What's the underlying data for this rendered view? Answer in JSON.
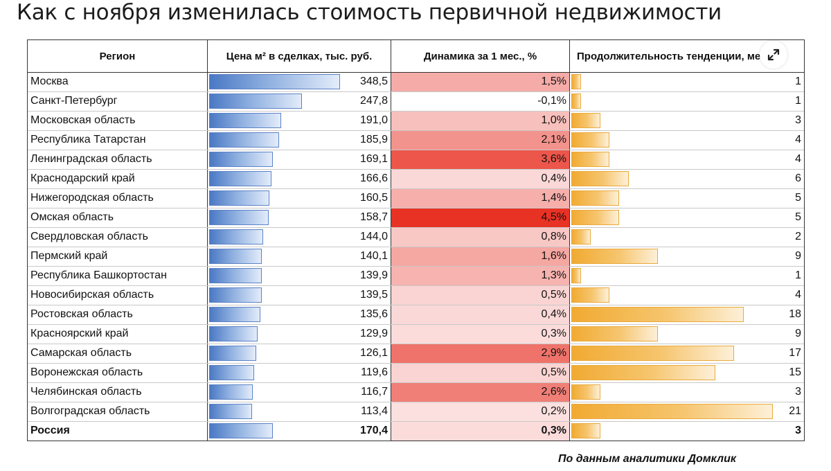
{
  "title": "Как с ноября изменилась стоимость первичной недвижимости",
  "footer": "По данным аналитики Домклик",
  "expand_icon": "expand-arrows-icon",
  "colors": {
    "price_bar": "#4a78c4",
    "change_positive": "#e83224",
    "change_negative": "#ffffff",
    "trend_bar": "#f1aa32"
  },
  "chart_data": {
    "type": "table",
    "columns": [
      "Регион",
      "Цена м² в сделках, тыс. руб.",
      "Динамика за 1 мес., %",
      "Продолжительность тенденции, мес."
    ],
    "headers_visible": [
      "Регион",
      "Цена м² в сделках, тыс. руб.",
      "Динамика за 1 мес., %",
      "Продолжительность тенденции, мес."
    ],
    "rows": [
      {
        "region": "Москва",
        "price": 348.5,
        "price_text": "348,5",
        "change": 1.5,
        "change_text": "1,5%",
        "trend": 1,
        "trend_text": "1"
      },
      {
        "region": "Санкт-Петербург",
        "price": 247.8,
        "price_text": "247,8",
        "change": -0.1,
        "change_text": "-0,1%",
        "trend": 1,
        "trend_text": "1"
      },
      {
        "region": "Московская область",
        "price": 191.0,
        "price_text": "191,0",
        "change": 1.0,
        "change_text": "1,0%",
        "trend": 3,
        "trend_text": "3"
      },
      {
        "region": "Республика Татарстан",
        "price": 185.9,
        "price_text": "185,9",
        "change": 2.1,
        "change_text": "2,1%",
        "trend": 4,
        "trend_text": "4"
      },
      {
        "region": "Ленинградская область",
        "price": 169.1,
        "price_text": "169,1",
        "change": 3.6,
        "change_text": "3,6%",
        "trend": 4,
        "trend_text": "4"
      },
      {
        "region": "Краснодарский край",
        "price": 166.6,
        "price_text": "166,6",
        "change": 0.4,
        "change_text": "0,4%",
        "trend": 6,
        "trend_text": "6"
      },
      {
        "region": "Нижегородская область",
        "price": 160.5,
        "price_text": "160,5",
        "change": 1.4,
        "change_text": "1,4%",
        "trend": 5,
        "trend_text": "5"
      },
      {
        "region": "Омская область",
        "price": 158.7,
        "price_text": "158,7",
        "change": 4.5,
        "change_text": "4,5%",
        "trend": 5,
        "trend_text": "5"
      },
      {
        "region": "Свердловская область",
        "price": 144.0,
        "price_text": "144,0",
        "change": 0.8,
        "change_text": "0,8%",
        "trend": 2,
        "trend_text": "2"
      },
      {
        "region": "Пермский край",
        "price": 140.1,
        "price_text": "140,1",
        "change": 1.6,
        "change_text": "1,6%",
        "trend": 9,
        "trend_text": "9"
      },
      {
        "region": "Республика Башкортостан",
        "price": 139.9,
        "price_text": "139,9",
        "change": 1.3,
        "change_text": "1,3%",
        "trend": 1,
        "trend_text": "1"
      },
      {
        "region": "Новосибирская область",
        "price": 139.5,
        "price_text": "139,5",
        "change": 0.5,
        "change_text": "0,5%",
        "trend": 4,
        "trend_text": "4"
      },
      {
        "region": "Ростовская область",
        "price": 135.6,
        "price_text": "135,6",
        "change": 0.4,
        "change_text": "0,4%",
        "trend": 18,
        "trend_text": "18"
      },
      {
        "region": "Красноярский край",
        "price": 129.9,
        "price_text": "129,9",
        "change": 0.3,
        "change_text": "0,3%",
        "trend": 9,
        "trend_text": "9"
      },
      {
        "region": "Самарская область",
        "price": 126.1,
        "price_text": "126,1",
        "change": 2.9,
        "change_text": "2,9%",
        "trend": 17,
        "trend_text": "17"
      },
      {
        "region": "Воронежская область",
        "price": 119.6,
        "price_text": "119,6",
        "change": 0.5,
        "change_text": "0,5%",
        "trend": 15,
        "trend_text": "15"
      },
      {
        "region": "Челябинская область",
        "price": 116.7,
        "price_text": "116,7",
        "change": 2.6,
        "change_text": "2,6%",
        "trend": 3,
        "trend_text": "3"
      },
      {
        "region": "Волгоградская область",
        "price": 113.4,
        "price_text": "113,4",
        "change": 0.2,
        "change_text": "0,2%",
        "trend": 21,
        "trend_text": "21"
      },
      {
        "region": "Россия",
        "price": 170.4,
        "price_text": "170,4",
        "change": 0.3,
        "change_text": "0,3%",
        "trend": 3,
        "trend_text": "3",
        "bold": true
      }
    ],
    "price_max": 348.5,
    "change_max": 4.5,
    "trend_max": 21
  }
}
